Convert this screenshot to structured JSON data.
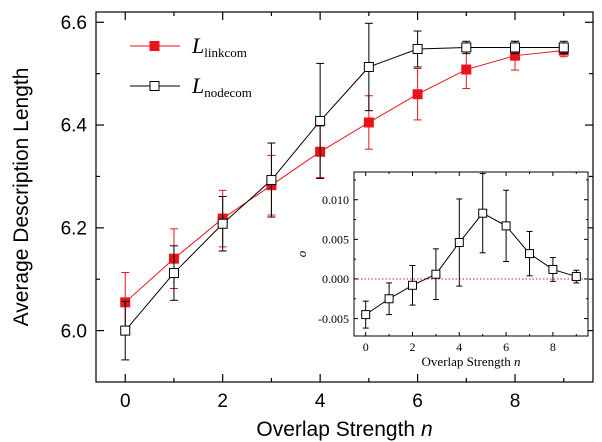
{
  "chart_data": [
    {
      "type": "line",
      "xlabel": "Overlap Strength",
      "xlabel_var": "n",
      "ylabel": "Average Description Length",
      "xlim": [
        -0.6,
        9.6
      ],
      "ylim": [
        5.9,
        6.62
      ],
      "x_ticks": [
        0,
        2,
        4,
        6,
        8
      ],
      "y_ticks": [
        6.0,
        6.2,
        6.4,
        6.6
      ],
      "y_tick_labels": [
        "6.0",
        "6.2",
        "6.4",
        "6.6"
      ],
      "x_tick_labels": [
        "0",
        "2",
        "4",
        "6",
        "8"
      ],
      "legend_position": "top-left",
      "series": [
        {
          "name": "L",
          "name_subscript": "linkcom",
          "color": "#e8141b",
          "marker": "filled-square",
          "x": [
            0,
            1,
            2,
            3,
            4,
            5,
            6,
            7,
            8,
            9
          ],
          "y": [
            6.055,
            6.14,
            6.218,
            6.283,
            6.348,
            6.405,
            6.46,
            6.508,
            6.535,
            6.545
          ],
          "err": [
            0.058,
            0.058,
            0.055,
            0.058,
            0.05,
            0.052,
            0.05,
            0.037,
            0.028,
            0.012
          ]
        },
        {
          "name": "L",
          "name_subscript": "nodecom",
          "color": "#000000",
          "marker": "open-square",
          "x": [
            0,
            1,
            2,
            3,
            4,
            5,
            6,
            7,
            8,
            9
          ],
          "y": [
            6.0,
            6.112,
            6.208,
            6.293,
            6.408,
            6.513,
            6.548,
            6.551,
            6.551,
            6.551
          ],
          "err": [
            0.057,
            0.053,
            0.053,
            0.072,
            0.112,
            0.085,
            0.035,
            0.012,
            0.012,
            0.012
          ]
        }
      ]
    },
    {
      "type": "line",
      "xlabel": "Overlap Strength",
      "xlabel_var": "n",
      "ylabel": "o",
      "xlim": [
        -0.5,
        9.5
      ],
      "ylim": [
        -0.0072,
        0.0135
      ],
      "x_ticks": [
        0,
        2,
        4,
        6,
        8
      ],
      "x_tick_labels": [
        "0",
        "2",
        "4",
        "6",
        "8"
      ],
      "y_ticks": [
        -0.005,
        0.0,
        0.005,
        0.01
      ],
      "y_tick_labels": [
        "-0.005",
        "0.000",
        "0.005",
        "0.010"
      ],
      "reference_line": {
        "y": 0,
        "color": "#e8141b",
        "style": "dotted"
      },
      "series": [
        {
          "color": "#000000",
          "marker": "open-square",
          "x": [
            0,
            1,
            2,
            3,
            4,
            5,
            6,
            7,
            8,
            9
          ],
          "y": [
            -0.0045,
            -0.0025,
            -0.0008,
            0.0006,
            0.0046,
            0.0083,
            0.0067,
            0.0032,
            0.0012,
            0.0003
          ],
          "err": [
            0.0017,
            0.002,
            0.0025,
            0.0032,
            0.0055,
            0.005,
            0.0045,
            0.0028,
            0.0015,
            0.0008
          ]
        }
      ]
    }
  ]
}
